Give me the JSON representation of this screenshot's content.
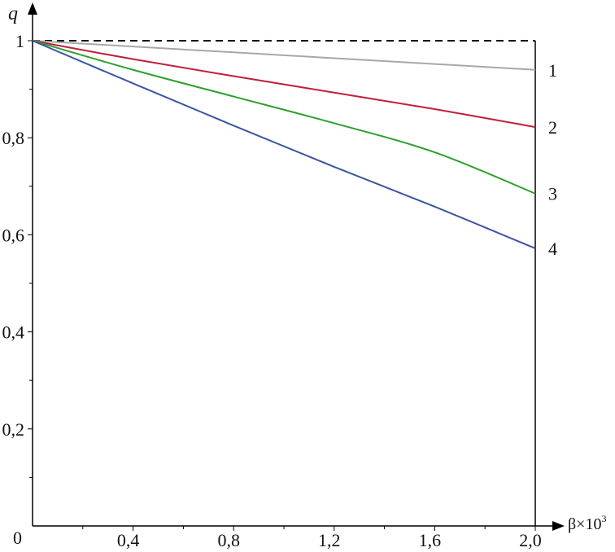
{
  "chart_data": {
    "type": "line",
    "title": "",
    "xlabel": "β×10",
    "xlabel_sup": "3",
    "ylabel": "q",
    "xlim": [
      0,
      2.0
    ],
    "ylim": [
      0,
      1.0
    ],
    "x_ticks": [
      {
        "value": 0.4,
        "label": "0,4"
      },
      {
        "value": 0.8,
        "label": "0,8"
      },
      {
        "value": 1.2,
        "label": "1,2"
      },
      {
        "value": 1.6,
        "label": "1,6"
      },
      {
        "value": 2.0,
        "label": "2,0"
      }
    ],
    "y_ticks": [
      {
        "value": 0.2,
        "label": "0,2"
      },
      {
        "value": 0.4,
        "label": "0,4"
      },
      {
        "value": 0.6,
        "label": "0,6"
      },
      {
        "value": 0.8,
        "label": "0,8"
      },
      {
        "value": 1.0,
        "label": "1"
      }
    ],
    "origin_label": "0",
    "reference_line": {
      "y": 1.0,
      "style": "dashed",
      "color": "#000000"
    },
    "series": [
      {
        "label": "1",
        "color": "#a8a8a8",
        "x": [
          0,
          0.4,
          0.8,
          1.2,
          1.6,
          2.0
        ],
        "y": [
          1.0,
          0.988,
          0.976,
          0.964,
          0.952,
          0.94
        ]
      },
      {
        "label": "2",
        "color": "#c0203a",
        "x": [
          0,
          0.4,
          0.8,
          1.2,
          1.6,
          2.0
        ],
        "y": [
          1.0,
          0.962,
          0.927,
          0.893,
          0.859,
          0.822
        ]
      },
      {
        "label": "3",
        "color": "#2ca02c",
        "x": [
          0,
          0.4,
          0.8,
          1.2,
          1.6,
          2.0
        ],
        "y": [
          1.0,
          0.94,
          0.885,
          0.83,
          0.77,
          0.685
        ]
      },
      {
        "label": "4",
        "color": "#3b56a0",
        "x": [
          0,
          0.4,
          0.8,
          1.2,
          1.6,
          2.0
        ],
        "y": [
          1.0,
          0.912,
          0.825,
          0.74,
          0.658,
          0.572
        ]
      }
    ]
  }
}
